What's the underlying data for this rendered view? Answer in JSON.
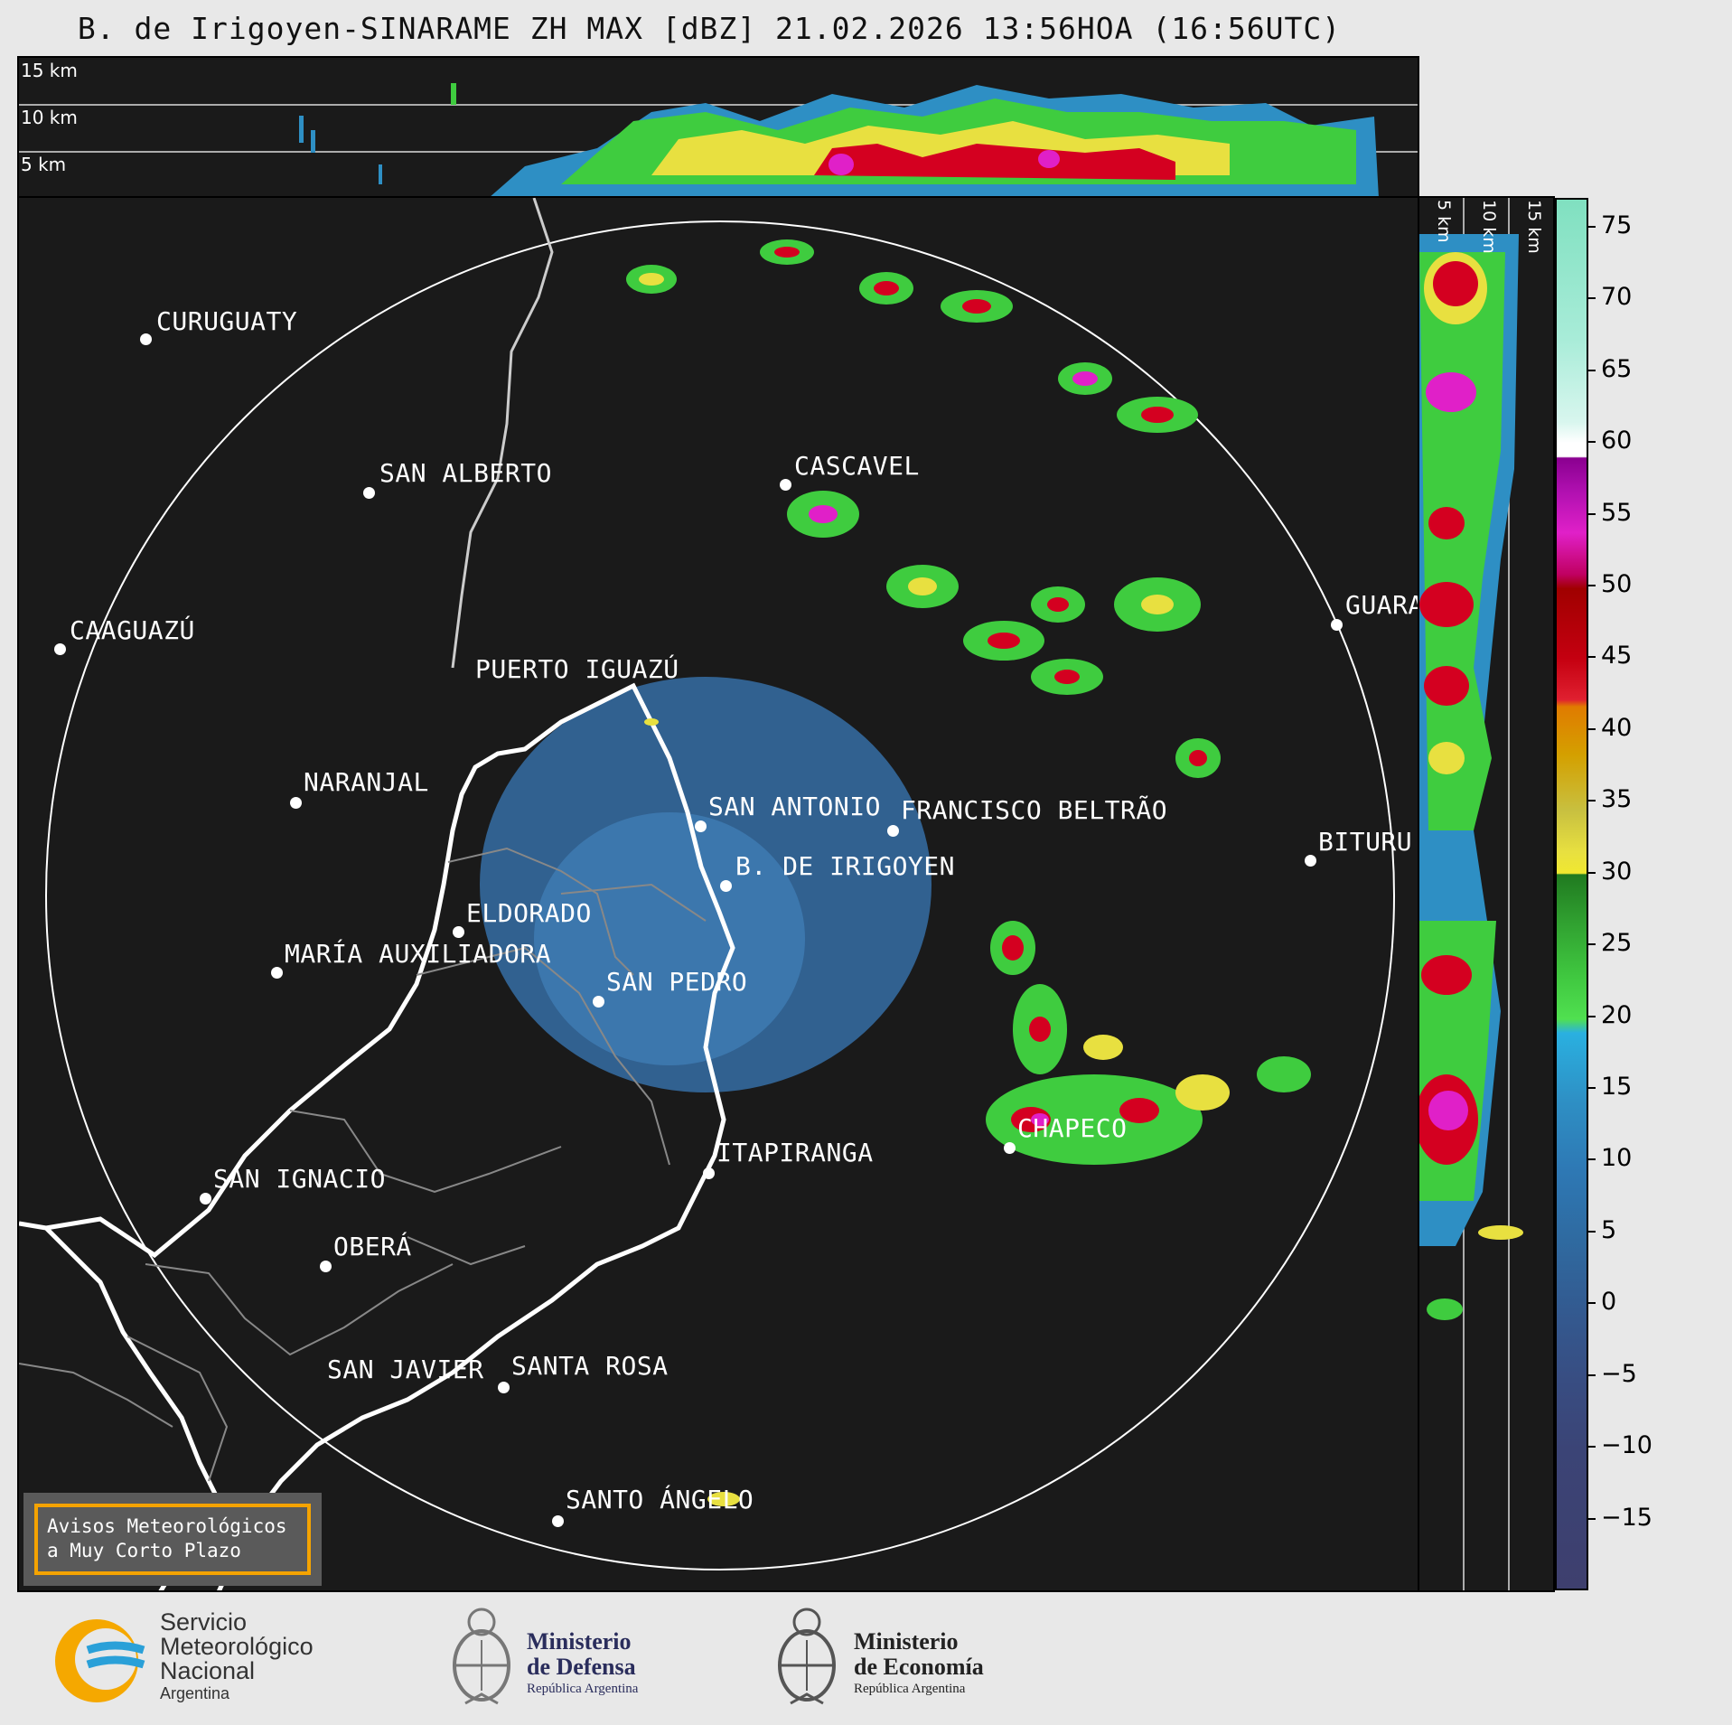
{
  "title": "B. de Irigoyen-SINARAME ZH MAX [dBZ] 21.02.2026 13:56HOA (16:56UTC)",
  "top_panel": {
    "height_labels": [
      "15 km",
      "10 km",
      "5 km"
    ]
  },
  "side_panel": {
    "height_labels": [
      "5 km",
      "10 km",
      "15 km"
    ]
  },
  "cities": [
    {
      "name": "CURUGUATY"
    },
    {
      "name": "SAN ALBERTO"
    },
    {
      "name": "CASCAVEL"
    },
    {
      "name": "CAAGUAZÚ"
    },
    {
      "name": "GUARA"
    },
    {
      "name": "PUERTO IGUAZÚ"
    },
    {
      "name": "NARANJAL"
    },
    {
      "name": "SAN ANTONIO"
    },
    {
      "name": "FRANCISCO BELTRÃO"
    },
    {
      "name": "BITURU"
    },
    {
      "name": "B. DE IRIGOYEN"
    },
    {
      "name": "ELDORADO"
    },
    {
      "name": "MARÍA AUXILIADORA"
    },
    {
      "name": "SAN PEDRO"
    },
    {
      "name": "ITAPIRANGA"
    },
    {
      "name": "CHAPECO"
    },
    {
      "name": "SAN IGNACIO"
    },
    {
      "name": "OBERÁ"
    },
    {
      "name": "SAN JAVIER"
    },
    {
      "name": "SANTA ROSA"
    },
    {
      "name": "SANTO ÁNGELO"
    }
  ],
  "colorbar": {
    "unit": "dBZ",
    "ticks": [
      "75",
      "70",
      "65",
      "60",
      "55",
      "50",
      "45",
      "40",
      "35",
      "30",
      "25",
      "20",
      "15",
      "10",
      "5",
      "0",
      "−5",
      "−10",
      "−15"
    ],
    "range": [
      -20,
      77
    ],
    "colors": {
      "low": "#3a3f6e",
      "mid_blue": "#2e8fc4",
      "green": "#2fbf2f",
      "yellow": "#f0e830",
      "orange": "#e07b00",
      "red": "#d40020",
      "magenta": "#e020c8",
      "white": "#ffffff",
      "mint": "#80e0c0"
    }
  },
  "notice": {
    "line1": "Avisos Meteorológicos",
    "line2": "a Muy Corto Plazo"
  },
  "logos": {
    "smn": {
      "line1": "Servicio",
      "line2": "Meteorológico",
      "line3": "Nacional",
      "line4": "Argentina"
    },
    "defensa": {
      "line1": "Ministerio",
      "line2": "de Defensa",
      "line3": "República Argentina"
    },
    "economia": {
      "line1": "Ministerio",
      "line2": "de Economía",
      "line3": "República Argentina"
    }
  }
}
